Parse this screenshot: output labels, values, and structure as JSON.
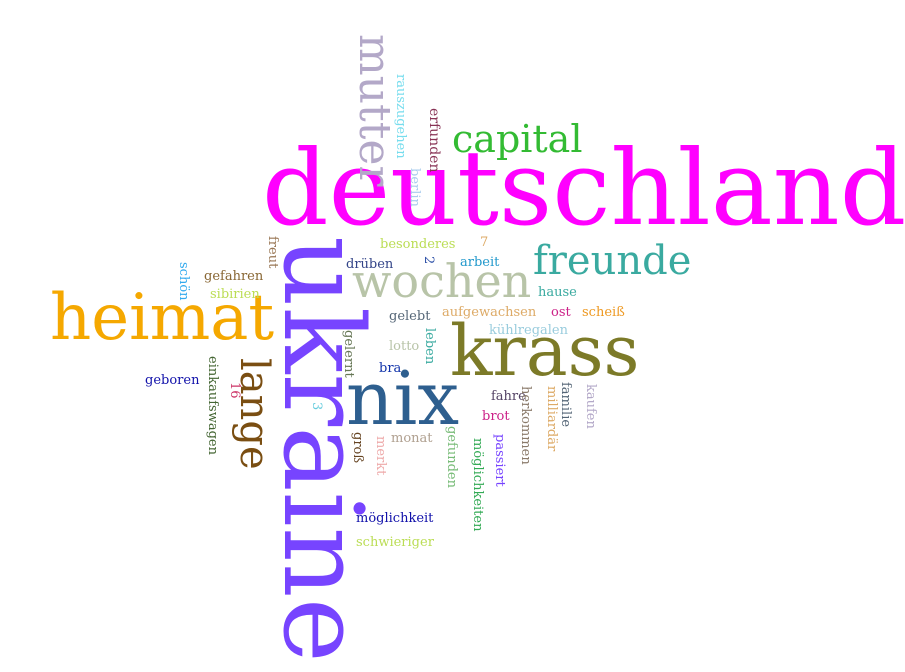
{
  "words": [
    {
      "text": "deutschland",
      "color": "#ff00ff",
      "orientation": "horizontal"
    },
    {
      "text": "ukraine",
      "color": "#7744ff",
      "orientation": "vertical"
    },
    {
      "text": "nix",
      "color": "#2e5f8f",
      "orientation": "horizontal"
    },
    {
      "text": "krass",
      "color": "#7c7a28",
      "orientation": "horizontal"
    },
    {
      "text": "heimat",
      "color": "#f5a800",
      "orientation": "horizontal"
    },
    {
      "text": "wochen",
      "color": "#b8c4a8",
      "orientation": "horizontal"
    },
    {
      "text": "freunde",
      "color": "#3aaaa0",
      "orientation": "horizontal"
    },
    {
      "text": "capital",
      "color": "#33bb33",
      "orientation": "horizontal"
    },
    {
      "text": "mutter",
      "color": "#b3a8c8",
      "orientation": "vertical"
    },
    {
      "text": "lange",
      "color": "#7a4e12",
      "orientation": "vertical"
    },
    {
      "text": "rauszugehen",
      "color": "#77ddee",
      "orientation": "vertical"
    },
    {
      "text": "erfunden",
      "color": "#883355",
      "orientation": "vertical"
    },
    {
      "text": "berlin",
      "color": "#aaccee",
      "orientation": "vertical"
    },
    {
      "text": "besonderes",
      "color": "#bbdd55",
      "orientation": "horizontal"
    },
    {
      "text": "7",
      "color": "#ddaa66",
      "orientation": "horizontal"
    },
    {
      "text": "freut",
      "color": "#997755",
      "orientation": "vertical"
    },
    {
      "text": "2",
      "color": "#3355aa",
      "orientation": "vertical"
    },
    {
      "text": "drüben",
      "color": "#334488",
      "orientation": "horizontal"
    },
    {
      "text": "arbeit",
      "color": "#2299cc",
      "orientation": "horizontal"
    },
    {
      "text": "schön",
      "color": "#33aaee",
      "orientation": "vertical"
    },
    {
      "text": "gefahren",
      "color": "#886633",
      "orientation": "horizontal"
    },
    {
      "text": "sibirien",
      "color": "#bbdd55",
      "orientation": "horizontal"
    },
    {
      "text": "hause",
      "color": "#3aaaa0",
      "orientation": "horizontal"
    },
    {
      "text": "gelebt",
      "color": "#556677",
      "orientation": "horizontal"
    },
    {
      "text": "aufgewachsen",
      "color": "#ddaa66",
      "orientation": "horizontal"
    },
    {
      "text": "ost",
      "color": "#cc2288",
      "orientation": "horizontal"
    },
    {
      "text": "scheiß",
      "color": "#ee9922",
      "orientation": "horizontal"
    },
    {
      "text": "kühlregalen",
      "color": "#99ccdd",
      "orientation": "horizontal"
    },
    {
      "text": "gelernt",
      "color": "#667755",
      "orientation": "vertical"
    },
    {
      "text": "leben",
      "color": "#3aaaa0",
      "orientation": "vertical"
    },
    {
      "text": "lotto",
      "color": "#b8c4a8",
      "orientation": "horizontal"
    },
    {
      "text": "bra",
      "color": "#1133aa",
      "orientation": "horizontal"
    },
    {
      "text": "geboren",
      "color": "#1111aa",
      "orientation": "horizontal"
    },
    {
      "text": "einkaufswagen",
      "color": "#446633",
      "orientation": "vertical"
    },
    {
      "text": "16",
      "color": "#cc3366",
      "orientation": "vertical"
    },
    {
      "text": "3",
      "color": "#66ccdd",
      "orientation": "vertical"
    },
    {
      "text": "fahre",
      "color": "#554466",
      "orientation": "horizontal"
    },
    {
      "text": "brot",
      "color": "#cc2288",
      "orientation": "horizontal"
    },
    {
      "text": "herkommen",
      "color": "#8a7a6a",
      "orientation": "vertical"
    },
    {
      "text": "familie",
      "color": "#556677",
      "orientation": "vertical"
    },
    {
      "text": "milliardär",
      "color": "#ddaa66",
      "orientation": "vertical"
    },
    {
      "text": "kaufen",
      "color": "#b3a8c8",
      "orientation": "vertical"
    },
    {
      "text": "groß",
      "color": "#664422",
      "orientation": "vertical"
    },
    {
      "text": "merkt",
      "color": "#eeaaaa",
      "orientation": "vertical"
    },
    {
      "text": "monat",
      "color": "#b0a090",
      "orientation": "horizontal"
    },
    {
      "text": "gefunden",
      "color": "#77bb77",
      "orientation": "vertical"
    },
    {
      "text": "möglichkeiten",
      "color": "#33aa55",
      "orientation": "vertical"
    },
    {
      "text": "passiert",
      "color": "#7744ff",
      "orientation": "vertical"
    },
    {
      "text": "möglichkeit",
      "color": "#1111aa",
      "orientation": "horizontal"
    },
    {
      "text": "schwieriger",
      "color": "#bbdd55",
      "orientation": "horizontal"
    }
  ]
}
